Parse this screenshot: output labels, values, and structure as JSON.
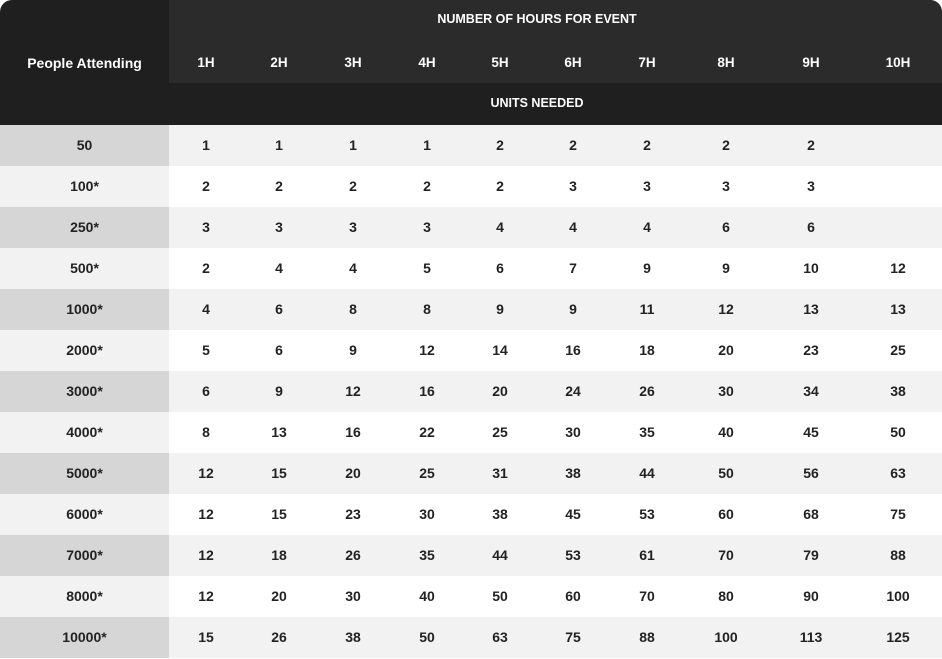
{
  "header": {
    "row_label": "People Attending",
    "title": "NUMBER OF HOURS FOR EVENT",
    "subtitle": "UNITS NEEDED",
    "columns": [
      "1H",
      "2H",
      "3H",
      "4H",
      "5H",
      "6H",
      "7H",
      "8H",
      "9H",
      "10H"
    ]
  },
  "rows": [
    {
      "label": "50",
      "values": [
        "1",
        "1",
        "1",
        "1",
        "2",
        "2",
        "2",
        "2",
        "2",
        ""
      ]
    },
    {
      "label": "100*",
      "values": [
        "2",
        "2",
        "2",
        "2",
        "2",
        "3",
        "3",
        "3",
        "3",
        ""
      ]
    },
    {
      "label": "250*",
      "values": [
        "3",
        "3",
        "3",
        "3",
        "4",
        "4",
        "4",
        "6",
        "6",
        ""
      ]
    },
    {
      "label": "500*",
      "values": [
        "2",
        "4",
        "4",
        "5",
        "6",
        "7",
        "9",
        "9",
        "10",
        "12"
      ]
    },
    {
      "label": "1000*",
      "values": [
        "4",
        "6",
        "8",
        "8",
        "9",
        "9",
        "11",
        "12",
        "13",
        "13"
      ]
    },
    {
      "label": "2000*",
      "values": [
        "5",
        "6",
        "9",
        "12",
        "14",
        "16",
        "18",
        "20",
        "23",
        "25"
      ]
    },
    {
      "label": "3000*",
      "values": [
        "6",
        "9",
        "12",
        "16",
        "20",
        "24",
        "26",
        "30",
        "34",
        "38"
      ]
    },
    {
      "label": "4000*",
      "values": [
        "8",
        "13",
        "16",
        "22",
        "25",
        "30",
        "35",
        "40",
        "45",
        "50"
      ]
    },
    {
      "label": "5000*",
      "values": [
        "12",
        "15",
        "20",
        "25",
        "31",
        "38",
        "44",
        "50",
        "56",
        "63"
      ]
    },
    {
      "label": "6000*",
      "values": [
        "12",
        "15",
        "23",
        "30",
        "38",
        "45",
        "53",
        "60",
        "68",
        "75"
      ]
    },
    {
      "label": "7000*",
      "values": [
        "12",
        "18",
        "26",
        "35",
        "44",
        "53",
        "61",
        "70",
        "79",
        "88"
      ]
    },
    {
      "label": "8000*",
      "values": [
        "12",
        "20",
        "30",
        "40",
        "50",
        "60",
        "70",
        "80",
        "90",
        "100"
      ]
    },
    {
      "label": "10000*",
      "values": [
        "15",
        "26",
        "38",
        "50",
        "63",
        "75",
        "88",
        "100",
        "113",
        "125"
      ]
    }
  ]
}
